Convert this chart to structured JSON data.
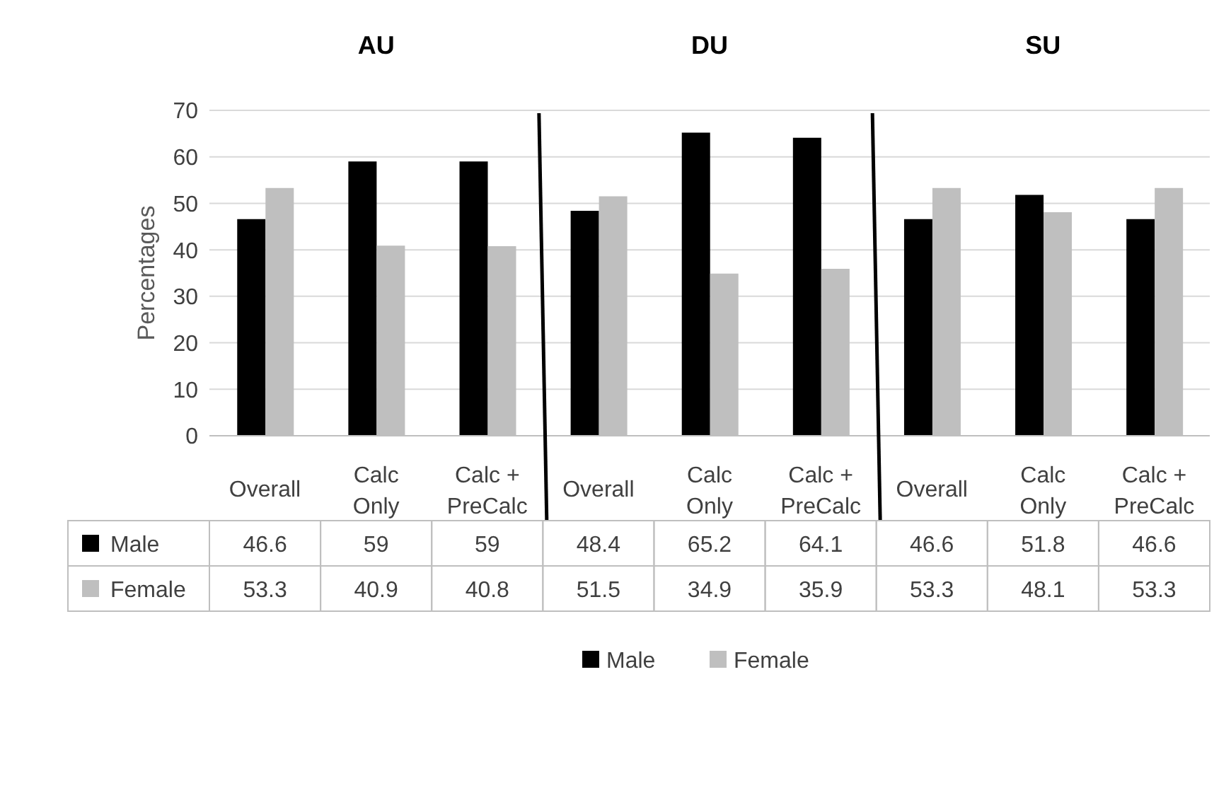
{
  "chart_data": {
    "type": "bar",
    "ylabel": "Percentages",
    "annotations": [
      "AU",
      "DU",
      "SU"
    ],
    "categories": [
      "Overall",
      "Calc Only",
      "Calc + PreCalc",
      "Overall",
      "Calc Only",
      "Calc + PreCalc",
      "Overall",
      "Calc Only",
      "Calc + PreCalc"
    ],
    "series": [
      {
        "name": "Male",
        "color": "#000000",
        "values": [
          46.6,
          59,
          59,
          48.4,
          65.2,
          64.1,
          46.6,
          51.8,
          46.6
        ]
      },
      {
        "name": "Female",
        "color": "#bfbfbf",
        "values": [
          53.3,
          40.9,
          40.8,
          51.5,
          34.9,
          35.9,
          53.3,
          48.1,
          53.3
        ]
      }
    ],
    "ylim": [
      0,
      70
    ],
    "yticks": [
      0,
      10,
      20,
      30,
      40,
      50,
      60,
      70
    ],
    "grid": "y",
    "legend": "bottom",
    "data_labels": true
  }
}
